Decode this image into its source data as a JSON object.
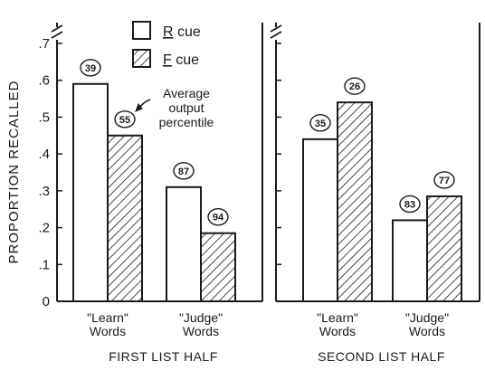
{
  "chart_data": {
    "type": "bar",
    "ylabel": "PROPORTION RECALLED",
    "ylim": [
      0,
      0.7
    ],
    "yticks": [
      {
        "value": 0,
        "label": "0"
      },
      {
        "value": 0.1,
        "label": ".1"
      },
      {
        "value": 0.2,
        "label": ".2"
      },
      {
        "value": 0.3,
        "label": ".3"
      },
      {
        "value": 0.4,
        "label": ".4"
      },
      {
        "value": 0.5,
        "label": ".5"
      },
      {
        "value": 0.6,
        "label": ".6"
      },
      {
        "value": 0.7,
        "label": ".7"
      }
    ],
    "axis_break": true,
    "grid": false,
    "legend_position": "top-center of left panel",
    "legend": [
      {
        "underlined": "R",
        "rest": " cue",
        "pattern": "open"
      },
      {
        "underlined": "F",
        "rest": " cue",
        "pattern": "hatched"
      }
    ],
    "annotation": [
      "Average",
      "output",
      "percentile"
    ],
    "panels": [
      {
        "title": "FIRST LIST HALF",
        "categories": [
          {
            "line1": "\"Learn\"",
            "line2": "Words"
          },
          {
            "line1": "\"Judge\"",
            "line2": "Words"
          }
        ],
        "series": [
          {
            "cue": "R",
            "values": [
              0.59,
              0.31
            ],
            "percentiles": [
              "39",
              "87"
            ]
          },
          {
            "cue": "F",
            "values": [
              0.45,
              0.185
            ],
            "percentiles": [
              "55",
              "94"
            ]
          }
        ]
      },
      {
        "title": "SECOND LIST HALF",
        "categories": [
          {
            "line1": "\"Learn\"",
            "line2": "Words"
          },
          {
            "line1": "\"Judge\"",
            "line2": "Words"
          }
        ],
        "series": [
          {
            "cue": "R",
            "values": [
              0.44,
              0.22
            ],
            "percentiles": [
              "35",
              "83"
            ]
          },
          {
            "cue": "F",
            "values": [
              0.54,
              0.285
            ],
            "percentiles": [
              "26",
              "77"
            ]
          }
        ]
      }
    ]
  },
  "colors": {
    "ink": "#1a1a1a",
    "background": "#ffffff",
    "bar_fill": "#ffffff"
  }
}
